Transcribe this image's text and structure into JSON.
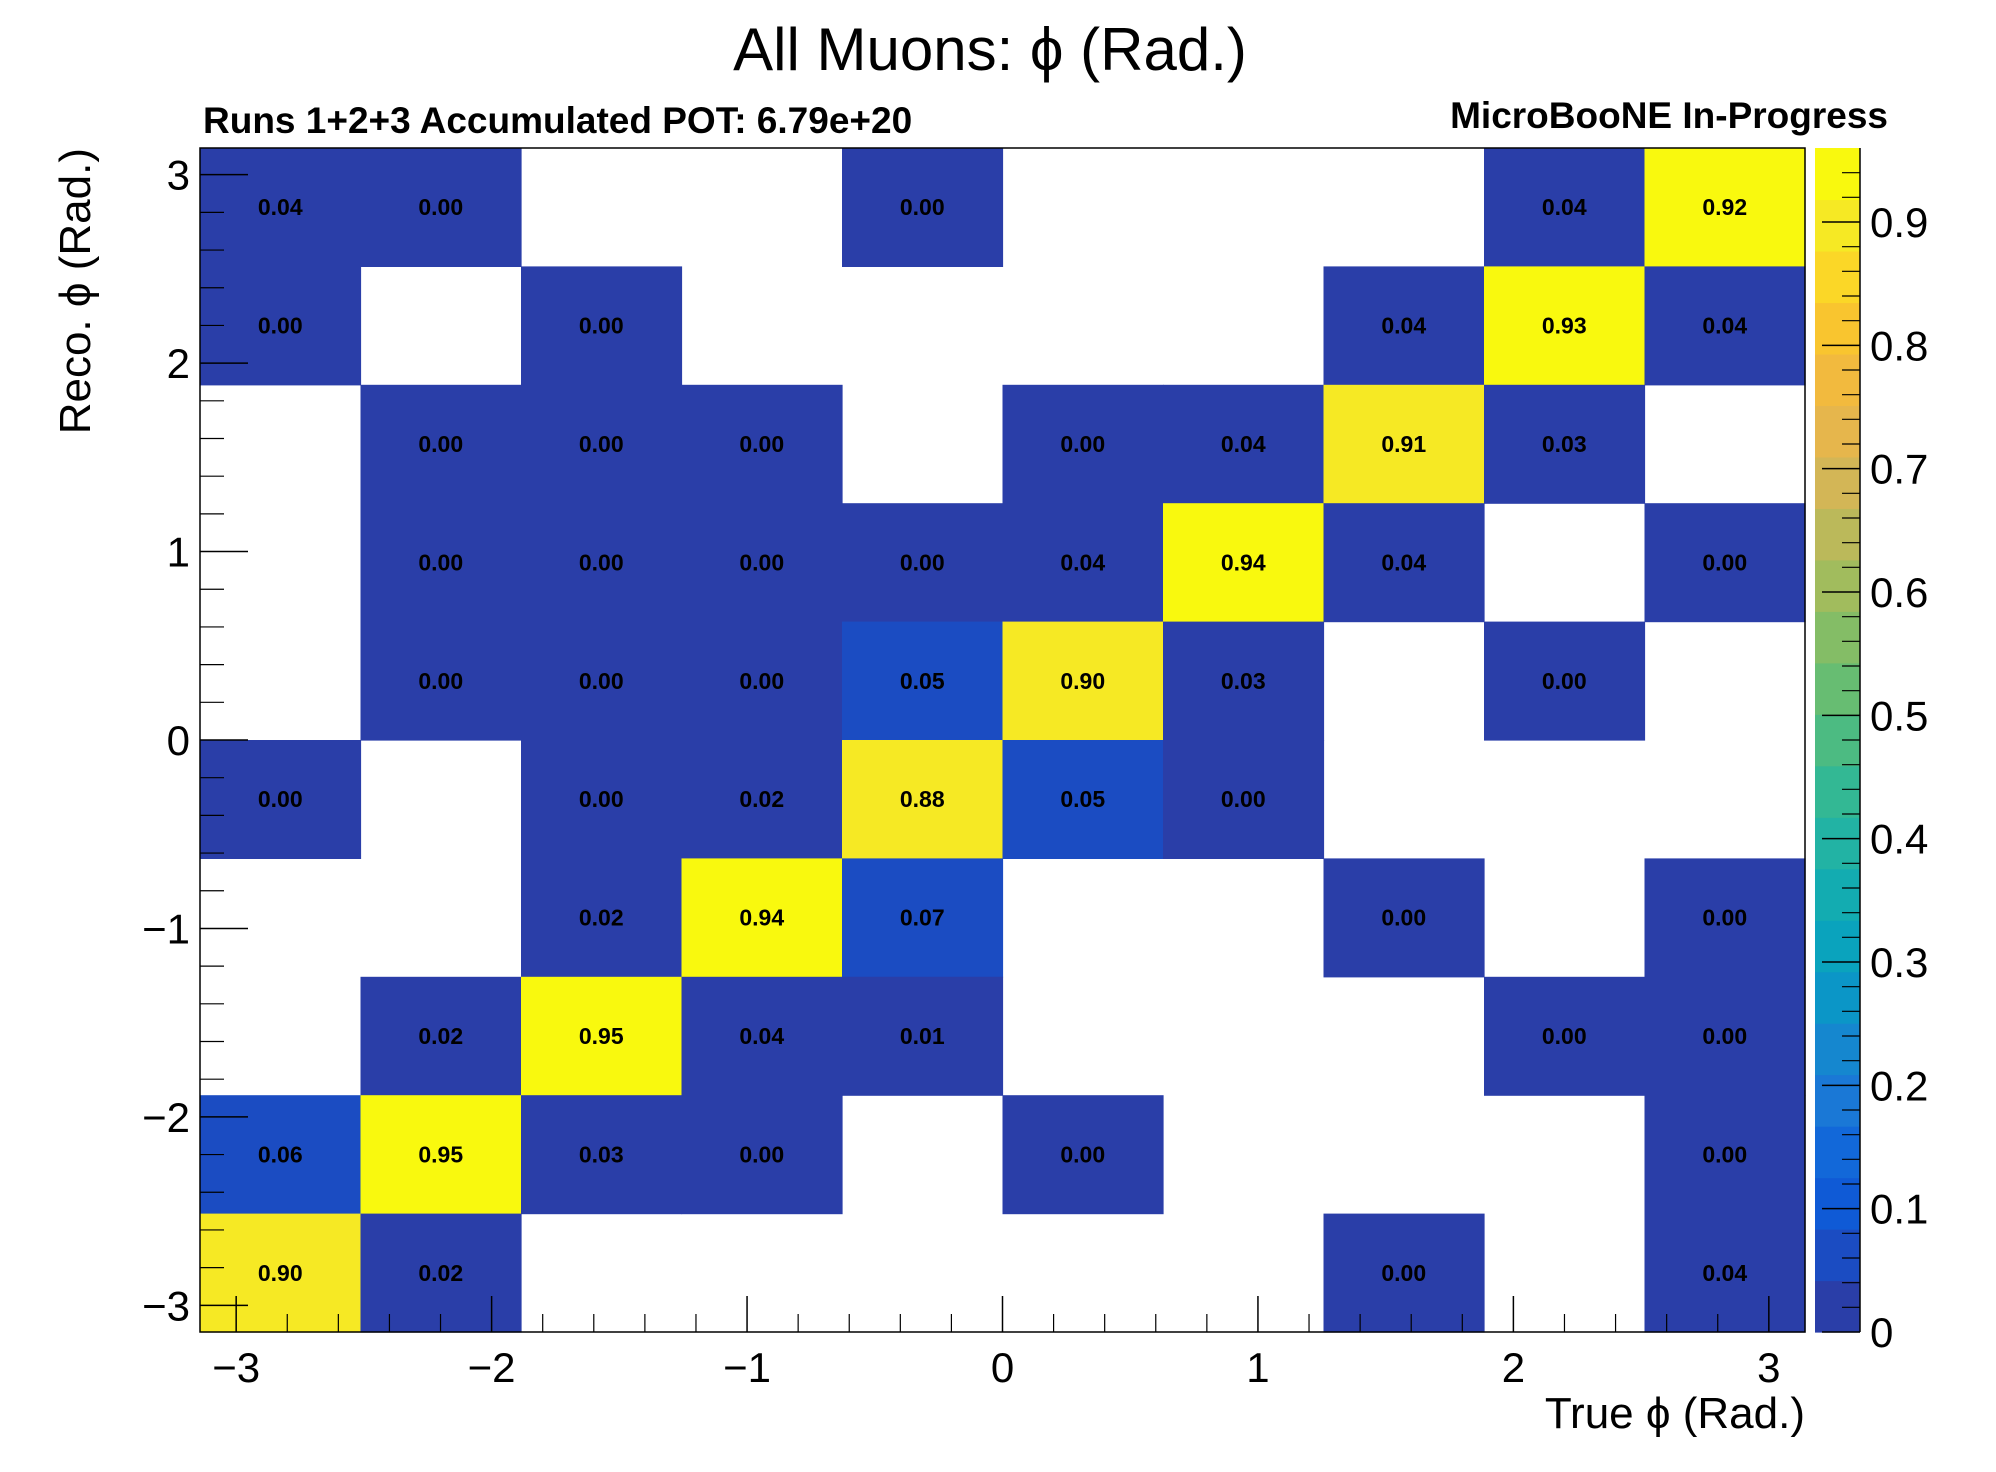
{
  "chart_data": {
    "type": "heatmap",
    "title": "All Muons: ϕ (Rad.)",
    "subtitle_left": "Runs 1+2+3 Accumulated POT: 6.79e+20",
    "subtitle_right": "MicroBooNE In-Progress",
    "xlabel": "True ϕ (Rad.)",
    "ylabel": "Reco. ϕ (Rad.)",
    "xlim": [
      -3.14159,
      3.14159
    ],
    "ylim": [
      -3.14159,
      3.14159
    ],
    "nbins_x": 10,
    "nbins_y": 10,
    "x_ticks": [
      "−3",
      "−2",
      "−1",
      "0",
      "1",
      "2",
      "3"
    ],
    "y_ticks": [
      "−3",
      "−2",
      "−1",
      "0",
      "1",
      "2",
      "3"
    ],
    "z_ticks": [
      "0",
      "0.1",
      "0.2",
      "0.3",
      "0.4",
      "0.5",
      "0.6",
      "0.7",
      "0.8",
      "0.9"
    ],
    "zlim": [
      0,
      0.96
    ],
    "cells": [
      {
        "ix": 0,
        "iy": 9,
        "value": 0.04,
        "label": "0.04"
      },
      {
        "ix": 1,
        "iy": 9,
        "value": 0.0,
        "label": "0.00"
      },
      {
        "ix": 4,
        "iy": 9,
        "value": 0.0,
        "label": "0.00"
      },
      {
        "ix": 8,
        "iy": 9,
        "value": 0.04,
        "label": "0.04"
      },
      {
        "ix": 9,
        "iy": 9,
        "value": 0.92,
        "label": "0.92"
      },
      {
        "ix": 0,
        "iy": 8,
        "value": 0.0,
        "label": "0.00"
      },
      {
        "ix": 2,
        "iy": 8,
        "value": 0.0,
        "label": "0.00"
      },
      {
        "ix": 7,
        "iy": 8,
        "value": 0.04,
        "label": "0.04"
      },
      {
        "ix": 8,
        "iy": 8,
        "value": 0.93,
        "label": "0.93"
      },
      {
        "ix": 9,
        "iy": 8,
        "value": 0.04,
        "label": "0.04"
      },
      {
        "ix": 1,
        "iy": 7,
        "value": 0.0,
        "label": "0.00"
      },
      {
        "ix": 2,
        "iy": 7,
        "value": 0.0,
        "label": "0.00"
      },
      {
        "ix": 3,
        "iy": 7,
        "value": 0.0,
        "label": "0.00"
      },
      {
        "ix": 5,
        "iy": 7,
        "value": 0.0,
        "label": "0.00"
      },
      {
        "ix": 6,
        "iy": 7,
        "value": 0.04,
        "label": "0.04"
      },
      {
        "ix": 7,
        "iy": 7,
        "value": 0.91,
        "label": "0.91"
      },
      {
        "ix": 8,
        "iy": 7,
        "value": 0.03,
        "label": "0.03"
      },
      {
        "ix": 1,
        "iy": 6,
        "value": 0.0,
        "label": "0.00"
      },
      {
        "ix": 2,
        "iy": 6,
        "value": 0.0,
        "label": "0.00"
      },
      {
        "ix": 3,
        "iy": 6,
        "value": 0.0,
        "label": "0.00"
      },
      {
        "ix": 4,
        "iy": 6,
        "value": 0.0,
        "label": "0.00"
      },
      {
        "ix": 5,
        "iy": 6,
        "value": 0.04,
        "label": "0.04"
      },
      {
        "ix": 6,
        "iy": 6,
        "value": 0.94,
        "label": "0.94"
      },
      {
        "ix": 7,
        "iy": 6,
        "value": 0.04,
        "label": "0.04"
      },
      {
        "ix": 9,
        "iy": 6,
        "value": 0.0,
        "label": "0.00"
      },
      {
        "ix": 1,
        "iy": 5,
        "value": 0.0,
        "label": "0.00"
      },
      {
        "ix": 2,
        "iy": 5,
        "value": 0.0,
        "label": "0.00"
      },
      {
        "ix": 3,
        "iy": 5,
        "value": 0.0,
        "label": "0.00"
      },
      {
        "ix": 4,
        "iy": 5,
        "value": 0.05,
        "label": "0.05"
      },
      {
        "ix": 5,
        "iy": 5,
        "value": 0.9,
        "label": "0.90"
      },
      {
        "ix": 6,
        "iy": 5,
        "value": 0.03,
        "label": "0.03"
      },
      {
        "ix": 8,
        "iy": 5,
        "value": 0.0,
        "label": "0.00"
      },
      {
        "ix": 0,
        "iy": 4,
        "value": 0.0,
        "label": "0.00"
      },
      {
        "ix": 2,
        "iy": 4,
        "value": 0.0,
        "label": "0.00"
      },
      {
        "ix": 3,
        "iy": 4,
        "value": 0.02,
        "label": "0.02"
      },
      {
        "ix": 4,
        "iy": 4,
        "value": 0.88,
        "label": "0.88"
      },
      {
        "ix": 5,
        "iy": 4,
        "value": 0.05,
        "label": "0.05"
      },
      {
        "ix": 6,
        "iy": 4,
        "value": 0.0,
        "label": "0.00"
      },
      {
        "ix": 2,
        "iy": 3,
        "value": 0.02,
        "label": "0.02"
      },
      {
        "ix": 3,
        "iy": 3,
        "value": 0.94,
        "label": "0.94"
      },
      {
        "ix": 4,
        "iy": 3,
        "value": 0.07,
        "label": "0.07"
      },
      {
        "ix": 7,
        "iy": 3,
        "value": 0.0,
        "label": "0.00"
      },
      {
        "ix": 9,
        "iy": 3,
        "value": 0.0,
        "label": "0.00"
      },
      {
        "ix": 1,
        "iy": 2,
        "value": 0.02,
        "label": "0.02"
      },
      {
        "ix": 2,
        "iy": 2,
        "value": 0.95,
        "label": "0.95"
      },
      {
        "ix": 3,
        "iy": 2,
        "value": 0.04,
        "label": "0.04"
      },
      {
        "ix": 4,
        "iy": 2,
        "value": 0.01,
        "label": "0.01"
      },
      {
        "ix": 8,
        "iy": 2,
        "value": 0.0,
        "label": "0.00"
      },
      {
        "ix": 9,
        "iy": 2,
        "value": 0.0,
        "label": "0.00"
      },
      {
        "ix": 0,
        "iy": 1,
        "value": 0.06,
        "label": "0.06"
      },
      {
        "ix": 1,
        "iy": 1,
        "value": 0.95,
        "label": "0.95"
      },
      {
        "ix": 2,
        "iy": 1,
        "value": 0.03,
        "label": "0.03"
      },
      {
        "ix": 3,
        "iy": 1,
        "value": 0.0,
        "label": "0.00"
      },
      {
        "ix": 5,
        "iy": 1,
        "value": 0.0,
        "label": "0.00"
      },
      {
        "ix": 9,
        "iy": 1,
        "value": 0.0,
        "label": "0.00"
      },
      {
        "ix": 0,
        "iy": 0,
        "value": 0.9,
        "label": "0.90"
      },
      {
        "ix": 1,
        "iy": 0,
        "value": 0.02,
        "label": "0.02"
      },
      {
        "ix": 7,
        "iy": 0,
        "value": 0.0,
        "label": "0.00"
      },
      {
        "ix": 9,
        "iy": 0,
        "value": 0.04,
        "label": "0.04"
      }
    ],
    "palette": [
      "#2a3ea8",
      "#1b4cc2",
      "#0f5ad6",
      "#1268d9",
      "#1a78d6",
      "#1587cf",
      "#0b96c7",
      "#0aa3bd",
      "#13acb1",
      "#22b3a4",
      "#33b894",
      "#4cbb82",
      "#67bd72",
      "#84bd66",
      "#a1bc5d",
      "#bbb95a",
      "#d3b656",
      "#e6b64c",
      "#f2ba3e",
      "#f9c52f",
      "#fbd727",
      "#f6e924",
      "#f9f90e"
    ]
  }
}
